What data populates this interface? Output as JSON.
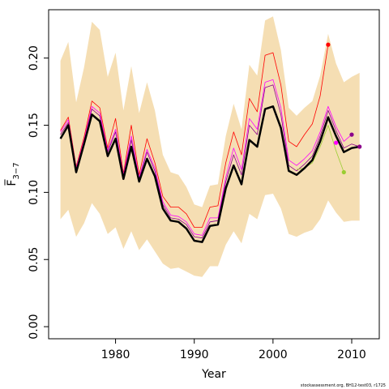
{
  "chart_data": {
    "type": "line",
    "xlabel": "Year",
    "ylabel": "F̅",
    "ylabel_subscript": "3−7",
    "footer": "stockassessment.org, BH12-test03, r1725",
    "xlim": [
      1971.5,
      2013.5
    ],
    "ylim": [
      -0.009,
      0.236
    ],
    "xticks": [
      1980,
      1990,
      2000,
      2010
    ],
    "xtick_labels": [
      "1980",
      "1990",
      "2000",
      "2010"
    ],
    "yticks": [
      0.0,
      0.05,
      0.1,
      0.15,
      0.2
    ],
    "ytick_labels": [
      "0.00",
      "0.05",
      "0.10",
      "0.15",
      "0.20"
    ],
    "grid": false,
    "colors": {
      "band": "#f5deb3",
      "main": "#000000",
      "red": "#ff0000",
      "purple": "#8b008b",
      "magenta": "#ff00ff",
      "green": "#9acd32"
    },
    "band": {
      "x": [
        1973,
        1974,
        1975,
        1976,
        1977,
        1978,
        1979,
        1980,
        1981,
        1982,
        1983,
        1984,
        1985,
        1986,
        1987,
        1988,
        1989,
        1990,
        1991,
        1992,
        1993,
        1994,
        1995,
        1996,
        1997,
        1998,
        1999,
        2000,
        2001,
        2002,
        2003,
        2004,
        2005,
        2006,
        2007,
        2008,
        2009,
        2010,
        2011
      ],
      "upper": [
        0.198,
        0.212,
        0.167,
        0.193,
        0.227,
        0.221,
        0.186,
        0.204,
        0.161,
        0.194,
        0.159,
        0.182,
        0.161,
        0.128,
        0.115,
        0.113,
        0.104,
        0.091,
        0.089,
        0.105,
        0.106,
        0.142,
        0.166,
        0.147,
        0.195,
        0.187,
        0.228,
        0.231,
        0.206,
        0.163,
        0.157,
        0.163,
        0.168,
        0.187,
        0.218,
        0.196,
        0.182,
        0.186,
        0.189
      ],
      "lower": [
        0.08,
        0.087,
        0.067,
        0.077,
        0.092,
        0.084,
        0.069,
        0.074,
        0.058,
        0.071,
        0.057,
        0.065,
        0.056,
        0.047,
        0.043,
        0.044,
        0.041,
        0.038,
        0.037,
        0.045,
        0.045,
        0.061,
        0.071,
        0.062,
        0.084,
        0.08,
        0.098,
        0.099,
        0.088,
        0.069,
        0.067,
        0.07,
        0.072,
        0.08,
        0.094,
        0.085,
        0.078,
        0.079,
        0.079
      ]
    },
    "series": [
      {
        "color": "red",
        "width": 0.8,
        "x": [
          1973,
          1974,
          1975,
          1976,
          1977,
          1978,
          1979,
          1980,
          1981,
          1982,
          1983,
          1984,
          1985,
          1986,
          1987,
          1988,
          1989,
          1990,
          1991,
          1992,
          1993,
          1994,
          1995,
          1996,
          1997,
          1998,
          1999,
          2000,
          2001,
          2002,
          2003,
          2004,
          2005,
          2006,
          2007
        ],
        "values": [
          0.146,
          0.156,
          0.119,
          0.141,
          0.168,
          0.163,
          0.133,
          0.155,
          0.114,
          0.15,
          0.113,
          0.14,
          0.122,
          0.097,
          0.089,
          0.089,
          0.084,
          0.074,
          0.074,
          0.089,
          0.09,
          0.122,
          0.145,
          0.128,
          0.17,
          0.16,
          0.202,
          0.204,
          0.18,
          0.138,
          0.134,
          0.143,
          0.151,
          0.172,
          0.21
        ]
      },
      {
        "color": "magenta",
        "width": 0.8,
        "x": [
          1973,
          1974,
          1975,
          1976,
          1977,
          1978,
          1979,
          1980,
          1981,
          1982,
          1983,
          1984,
          1985,
          1986,
          1987,
          1988,
          1989,
          1990,
          1991,
          1992,
          1993,
          1994,
          1995,
          1996,
          1997,
          1998,
          1999,
          2000,
          2001,
          2002,
          2003,
          2004,
          2005,
          2006,
          2007,
          2008,
          2009,
          2010
        ],
        "values": [
          0.145,
          0.154,
          0.118,
          0.139,
          0.164,
          0.159,
          0.131,
          0.147,
          0.113,
          0.142,
          0.111,
          0.132,
          0.118,
          0.093,
          0.083,
          0.082,
          0.078,
          0.069,
          0.068,
          0.081,
          0.081,
          0.111,
          0.133,
          0.117,
          0.155,
          0.147,
          0.182,
          0.184,
          0.163,
          0.124,
          0.12,
          0.125,
          0.131,
          0.145,
          0.164,
          0.149,
          0.138,
          0.143
        ]
      },
      {
        "color": "purple",
        "width": 0.8,
        "x": [
          1973,
          1974,
          1975,
          1976,
          1977,
          1978,
          1979,
          1980,
          1981,
          1982,
          1983,
          1984,
          1985,
          1986,
          1987,
          1988,
          1989,
          1990,
          1991,
          1992,
          1993,
          1994,
          1995,
          1996,
          1997,
          1998,
          1999,
          2000,
          2001,
          2002,
          2003,
          2004,
          2005,
          2006,
          2007,
          2008,
          2009,
          2010,
          2011
        ],
        "values": [
          0.143,
          0.152,
          0.117,
          0.138,
          0.162,
          0.157,
          0.13,
          0.145,
          0.112,
          0.139,
          0.11,
          0.13,
          0.116,
          0.091,
          0.081,
          0.08,
          0.076,
          0.067,
          0.066,
          0.078,
          0.079,
          0.108,
          0.128,
          0.113,
          0.15,
          0.143,
          0.178,
          0.18,
          0.158,
          0.12,
          0.116,
          0.121,
          0.127,
          0.142,
          0.161,
          0.146,
          0.133,
          0.136,
          0.134
        ]
      },
      {
        "color": "green",
        "width": 0.8,
        "x": [
          2003,
          2004,
          2005,
          2006,
          2007,
          2008,
          2009
        ],
        "values": [
          0.117,
          0.118,
          0.122,
          0.134,
          0.15,
          0.131,
          0.115
        ]
      },
      {
        "color": "main",
        "width": 2.5,
        "x": [
          1973,
          1974,
          1975,
          1976,
          1977,
          1978,
          1979,
          1980,
          1981,
          1982,
          1983,
          1984,
          1985,
          1986,
          1987,
          1988,
          1989,
          1990,
          1991,
          1992,
          1993,
          1994,
          1995,
          1996,
          1997,
          1998,
          1999,
          2000,
          2001,
          2002,
          2003,
          2004,
          2005,
          2006,
          2007,
          2008,
          2009,
          2010,
          2011
        ],
        "values": [
          0.14,
          0.15,
          0.115,
          0.136,
          0.158,
          0.153,
          0.127,
          0.14,
          0.11,
          0.134,
          0.108,
          0.125,
          0.112,
          0.088,
          0.079,
          0.078,
          0.073,
          0.064,
          0.063,
          0.075,
          0.076,
          0.103,
          0.12,
          0.106,
          0.139,
          0.134,
          0.162,
          0.164,
          0.148,
          0.116,
          0.113,
          0.118,
          0.124,
          0.138,
          0.156,
          0.142,
          0.13,
          0.133,
          0.134
        ]
      }
    ],
    "endpoints": [
      {
        "x": 2007,
        "y": 0.21,
        "color": "red"
      },
      {
        "x": 2008,
        "y": 0.137,
        "color": "magenta"
      },
      {
        "x": 2009,
        "y": 0.115,
        "color": "green"
      },
      {
        "x": 2010,
        "y": 0.143,
        "color": "purple"
      },
      {
        "x": 2011,
        "y": 0.134,
        "color": "purple"
      }
    ]
  }
}
